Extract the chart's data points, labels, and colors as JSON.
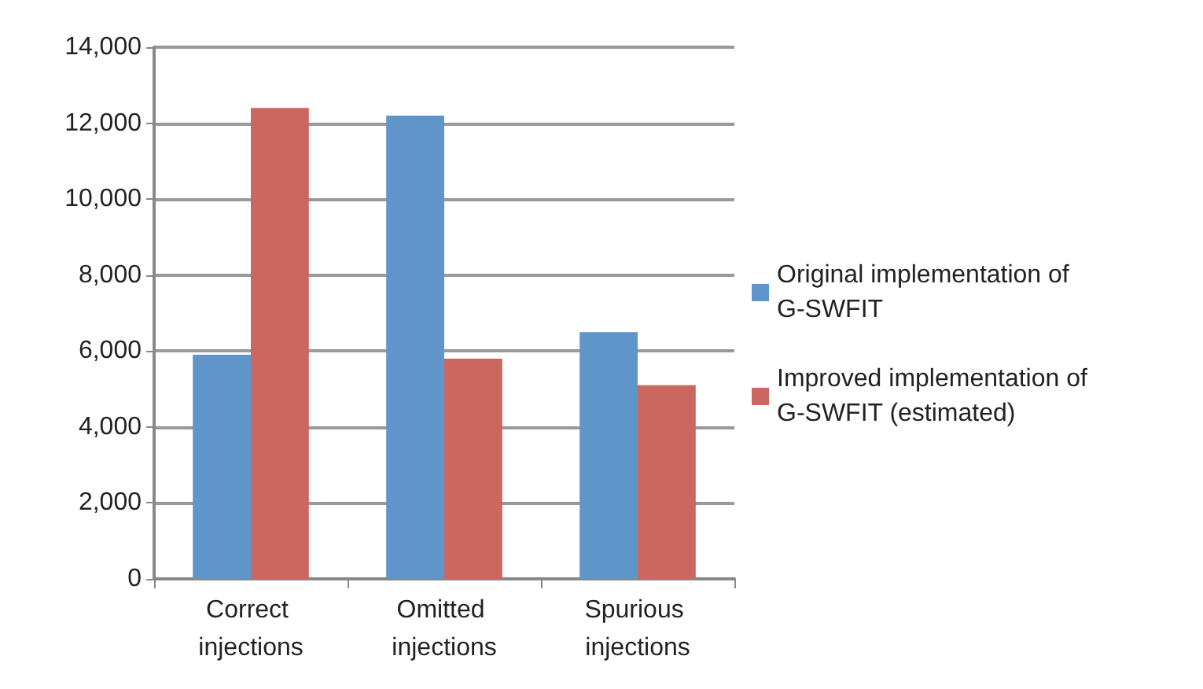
{
  "chart_data": {
    "type": "bar",
    "categories": [
      "Correct injections",
      "Omitted injections",
      "Spurious injections"
    ],
    "series": [
      {
        "name": "Original implementation of G-SWFIT",
        "color": "#6095c9",
        "values": [
          5900,
          12200,
          6500
        ]
      },
      {
        "name": "Improved implementation of G-SWFIT (estimated)",
        "color": "#cc6660",
        "values": [
          12400,
          5800,
          5100
        ]
      }
    ],
    "ylim": [
      0,
      14000
    ],
    "yticks": [
      0,
      {
        "value": 2000,
        "label": "2,000"
      },
      {
        "value": 4000,
        "label": "4,000"
      },
      {
        "value": 6000,
        "label": "6,000"
      },
      {
        "value": 8000,
        "label": "8,000"
      },
      {
        "value": 10000,
        "label": "10,000"
      },
      {
        "value": 12000,
        "label": "12,000"
      },
      {
        "value": 14000,
        "label": "14,000"
      }
    ],
    "grid": "y",
    "legend": "right"
  }
}
